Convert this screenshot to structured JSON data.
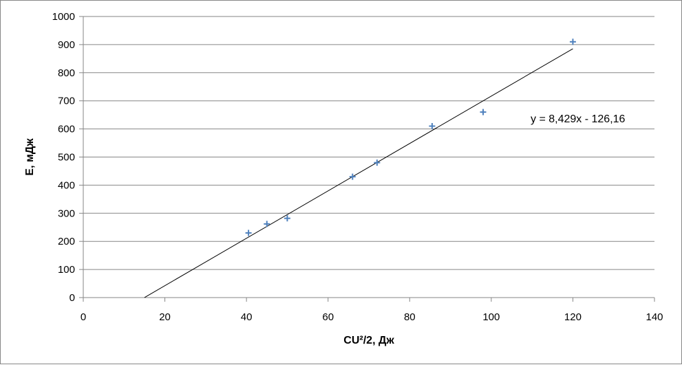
{
  "chart_data": {
    "type": "scatter",
    "title": "",
    "xlabel": "CU²/2, Дж",
    "ylabel": "E, мДж",
    "xlim": [
      0,
      140
    ],
    "ylim": [
      0,
      1000
    ],
    "x_ticks": [
      0,
      20,
      40,
      60,
      80,
      100,
      120,
      140
    ],
    "y_ticks": [
      0,
      100,
      200,
      300,
      400,
      500,
      600,
      700,
      800,
      900,
      1000
    ],
    "grid": "horizontal",
    "legend": "none",
    "series": [
      {
        "marker": "plus",
        "color": "#4f81bd",
        "points": [
          {
            "x": 40.5,
            "y": 230
          },
          {
            "x": 45,
            "y": 262
          },
          {
            "x": 50,
            "y": 282
          },
          {
            "x": 66,
            "y": 430
          },
          {
            "x": 72,
            "y": 480
          },
          {
            "x": 85.5,
            "y": 610
          },
          {
            "x": 98,
            "y": 660
          },
          {
            "x": 120,
            "y": 910
          }
        ]
      }
    ],
    "trendline": {
      "type": "linear",
      "slope": 8.429,
      "intercept": -126.16,
      "x_range": [
        15,
        120
      ],
      "color": "#000000",
      "label": "y = 8,429x - 126,16"
    }
  }
}
